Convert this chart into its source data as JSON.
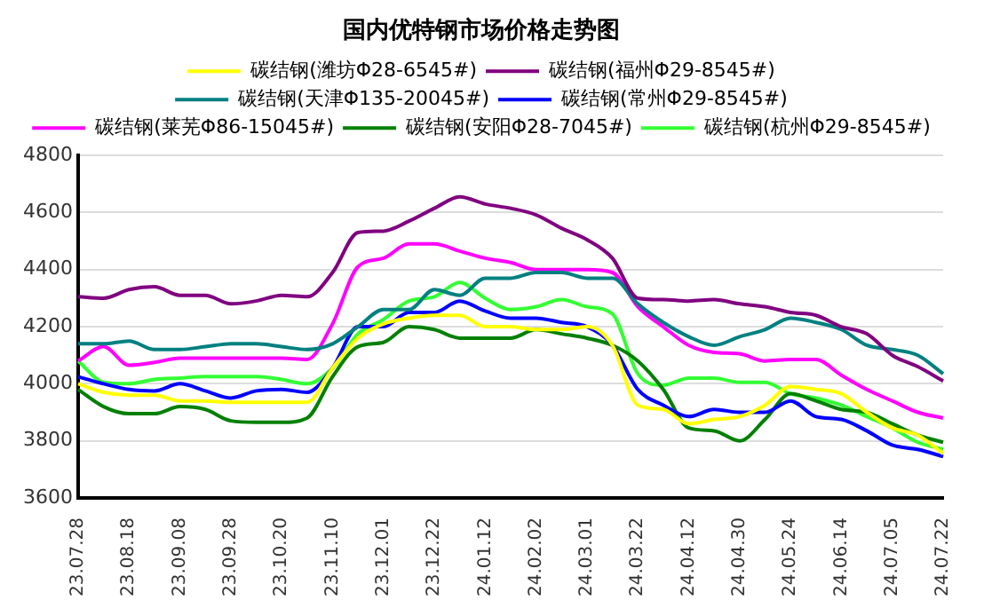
{
  "chart_data": {
    "type": "line",
    "title": "国内优特钢市场价格走势图",
    "categories": [
      "23.07.28",
      null,
      "23.08.18",
      null,
      "23.09.08",
      null,
      "23.09.28",
      null,
      "23.10.20",
      null,
      "23.11.10",
      null,
      "23.12.01",
      null,
      "23.12.22",
      null,
      "24.01.12",
      null,
      "24.02.02",
      null,
      "24.03.01",
      null,
      "24.03.22",
      null,
      "24.04.12",
      null,
      "24.04.30",
      null,
      "24.05.24",
      null,
      "24.06.14",
      null,
      "24.07.05",
      null,
      "24.07.22"
    ],
    "series": [
      {
        "name": "碳结钢(潍坊Φ28-6545#)",
        "color": "#ffff00",
        "values": [
          4000,
          3970,
          3960,
          3960,
          3940,
          3940,
          3935,
          3935,
          3935,
          3935,
          4055,
          4160,
          4210,
          4230,
          4240,
          4240,
          4200,
          4200,
          4190,
          4190,
          4200,
          4135,
          3925,
          3910,
          3860,
          3875,
          3885,
          3925,
          3990,
          3980,
          3965,
          3900,
          3845,
          3820,
          3755
        ]
      },
      {
        "name": "碳结钢(福州Φ29-8545#)",
        "color": "#800080",
        "values": [
          4305,
          4300,
          4330,
          4340,
          4310,
          4310,
          4280,
          4290,
          4310,
          4305,
          4390,
          4530,
          4535,
          4570,
          4615,
          4655,
          4630,
          4615,
          4592,
          4545,
          4505,
          4440,
          4300,
          4295,
          4290,
          4295,
          4280,
          4270,
          4250,
          4240,
          4200,
          4175,
          4100,
          4060,
          4010
        ]
      },
      {
        "name": "碳结钢(天津Φ135-20045#)",
        "color": "#008080",
        "values": [
          4140,
          4140,
          4150,
          4120,
          4120,
          4130,
          4140,
          4140,
          4130,
          4120,
          4140,
          4200,
          4260,
          4260,
          4330,
          4310,
          4370,
          4370,
          4390,
          4390,
          4370,
          4370,
          4280,
          4215,
          4165,
          4135,
          4165,
          4190,
          4230,
          4215,
          4190,
          4135,
          4120,
          4100,
          4035
        ]
      },
      {
        "name": "碳结钢(常州Φ29-8545#)",
        "color": "#0000ff",
        "values": [
          4025,
          4000,
          3980,
          3975,
          4000,
          3975,
          3950,
          3975,
          3980,
          3970,
          4055,
          4200,
          4200,
          4250,
          4250,
          4290,
          4255,
          4230,
          4230,
          4215,
          4200,
          4135,
          3980,
          3925,
          3885,
          3910,
          3900,
          3900,
          3940,
          3885,
          3875,
          3835,
          3785,
          3770,
          3745
        ]
      },
      {
        "name": "碳结钢(莱芜Φ86-15045#)",
        "color": "#ff00ff",
        "values": [
          4080,
          4130,
          4065,
          4075,
          4090,
          4090,
          4090,
          4090,
          4090,
          4085,
          4210,
          4410,
          4440,
          4490,
          4490,
          4465,
          4440,
          4425,
          4400,
          4400,
          4400,
          4390,
          4270,
          4200,
          4135,
          4110,
          4105,
          4080,
          4085,
          4085,
          4030,
          3980,
          3940,
          3900,
          3880
        ]
      },
      {
        "name": "碳结钢(安阳Φ28-7045#)",
        "color": "#008000",
        "values": [
          3980,
          3920,
          3895,
          3895,
          3920,
          3910,
          3870,
          3865,
          3865,
          3880,
          4025,
          4130,
          4145,
          4200,
          4190,
          4160,
          4160,
          4160,
          4190,
          4175,
          4160,
          4135,
          4080,
          3980,
          3845,
          3835,
          3800,
          3875,
          3965,
          3940,
          3910,
          3900,
          3860,
          3820,
          3795
        ]
      },
      {
        "name": "碳结钢(杭州Φ29-8545#)",
        "color": "#33ff33",
        "values": [
          4080,
          4005,
          4000,
          4015,
          4020,
          4025,
          4025,
          4025,
          4015,
          4000,
          4055,
          4175,
          4225,
          4290,
          4305,
          4355,
          4300,
          4260,
          4270,
          4295,
          4270,
          4245,
          4035,
          3995,
          4020,
          4020,
          4005,
          4005,
          3965,
          3950,
          3925,
          3885,
          3845,
          3795,
          3770
        ]
      }
    ],
    "ylim": [
      3600,
      4800
    ],
    "yticks": [
      3600,
      3800,
      4000,
      4200,
      4400,
      4600,
      4800
    ],
    "grid": "y",
    "legend": "top",
    "marker": "none",
    "line_style": "solid"
  }
}
